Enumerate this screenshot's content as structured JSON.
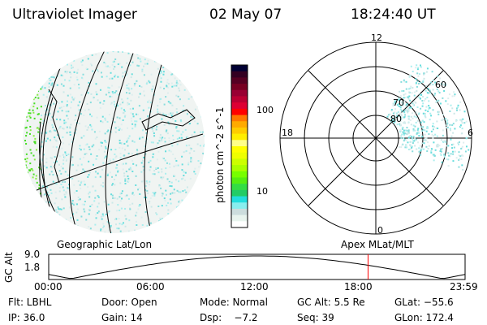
{
  "header": {
    "title": "Ultraviolet Imager",
    "date": "02 May 07",
    "time": "18:24:40 UT"
  },
  "colorbar": {
    "label": "photon cm^-2 s^-1",
    "ticks": [
      "100",
      "10"
    ],
    "colors": [
      "#000033",
      "#330022",
      "#550022",
      "#770022",
      "#990033",
      "#bb0033",
      "#dd0033",
      "#ff0000",
      "#ff7700",
      "#ffaa00",
      "#ffcc00",
      "#ffee00",
      "#ffff88",
      "#ffff00",
      "#eeff00",
      "#ccff00",
      "#aaff00",
      "#77ff00",
      "#55ee11",
      "#33dd44",
      "#22cc66",
      "#22dddd",
      "#88eeee",
      "#ccdddd",
      "#e8f4ee",
      "#ffffff"
    ]
  },
  "polar": {
    "labels": {
      "top": "12",
      "left": "18",
      "right": "6",
      "bottom": "0"
    },
    "lat_labels": [
      "80",
      "70",
      "60"
    ]
  },
  "timeline": {
    "left_title": "Geographic Lat/Lon",
    "right_title": "Apex MLat/MLT",
    "ylabel": "GC Alt",
    "ymax": "9.0",
    "ymin": "1.8",
    "xticks": [
      "00:00",
      "06:00",
      "12:00",
      "18:00",
      "23:59"
    ],
    "current_time_fraction": 0.767
  },
  "status": {
    "filter": "Flt: LBHL",
    "door": "Door: Open",
    "mode": "Mode: Normal",
    "gc_alt": "GC Alt: 5.5 Re",
    "glat": "GLat: −55.6",
    "ip": "IP: 36.0",
    "gain": "Gain: 14",
    "dsp": "Dsp:    −7.2",
    "seq": "Seq: 39",
    "glon": "GLon: 172.4"
  }
}
